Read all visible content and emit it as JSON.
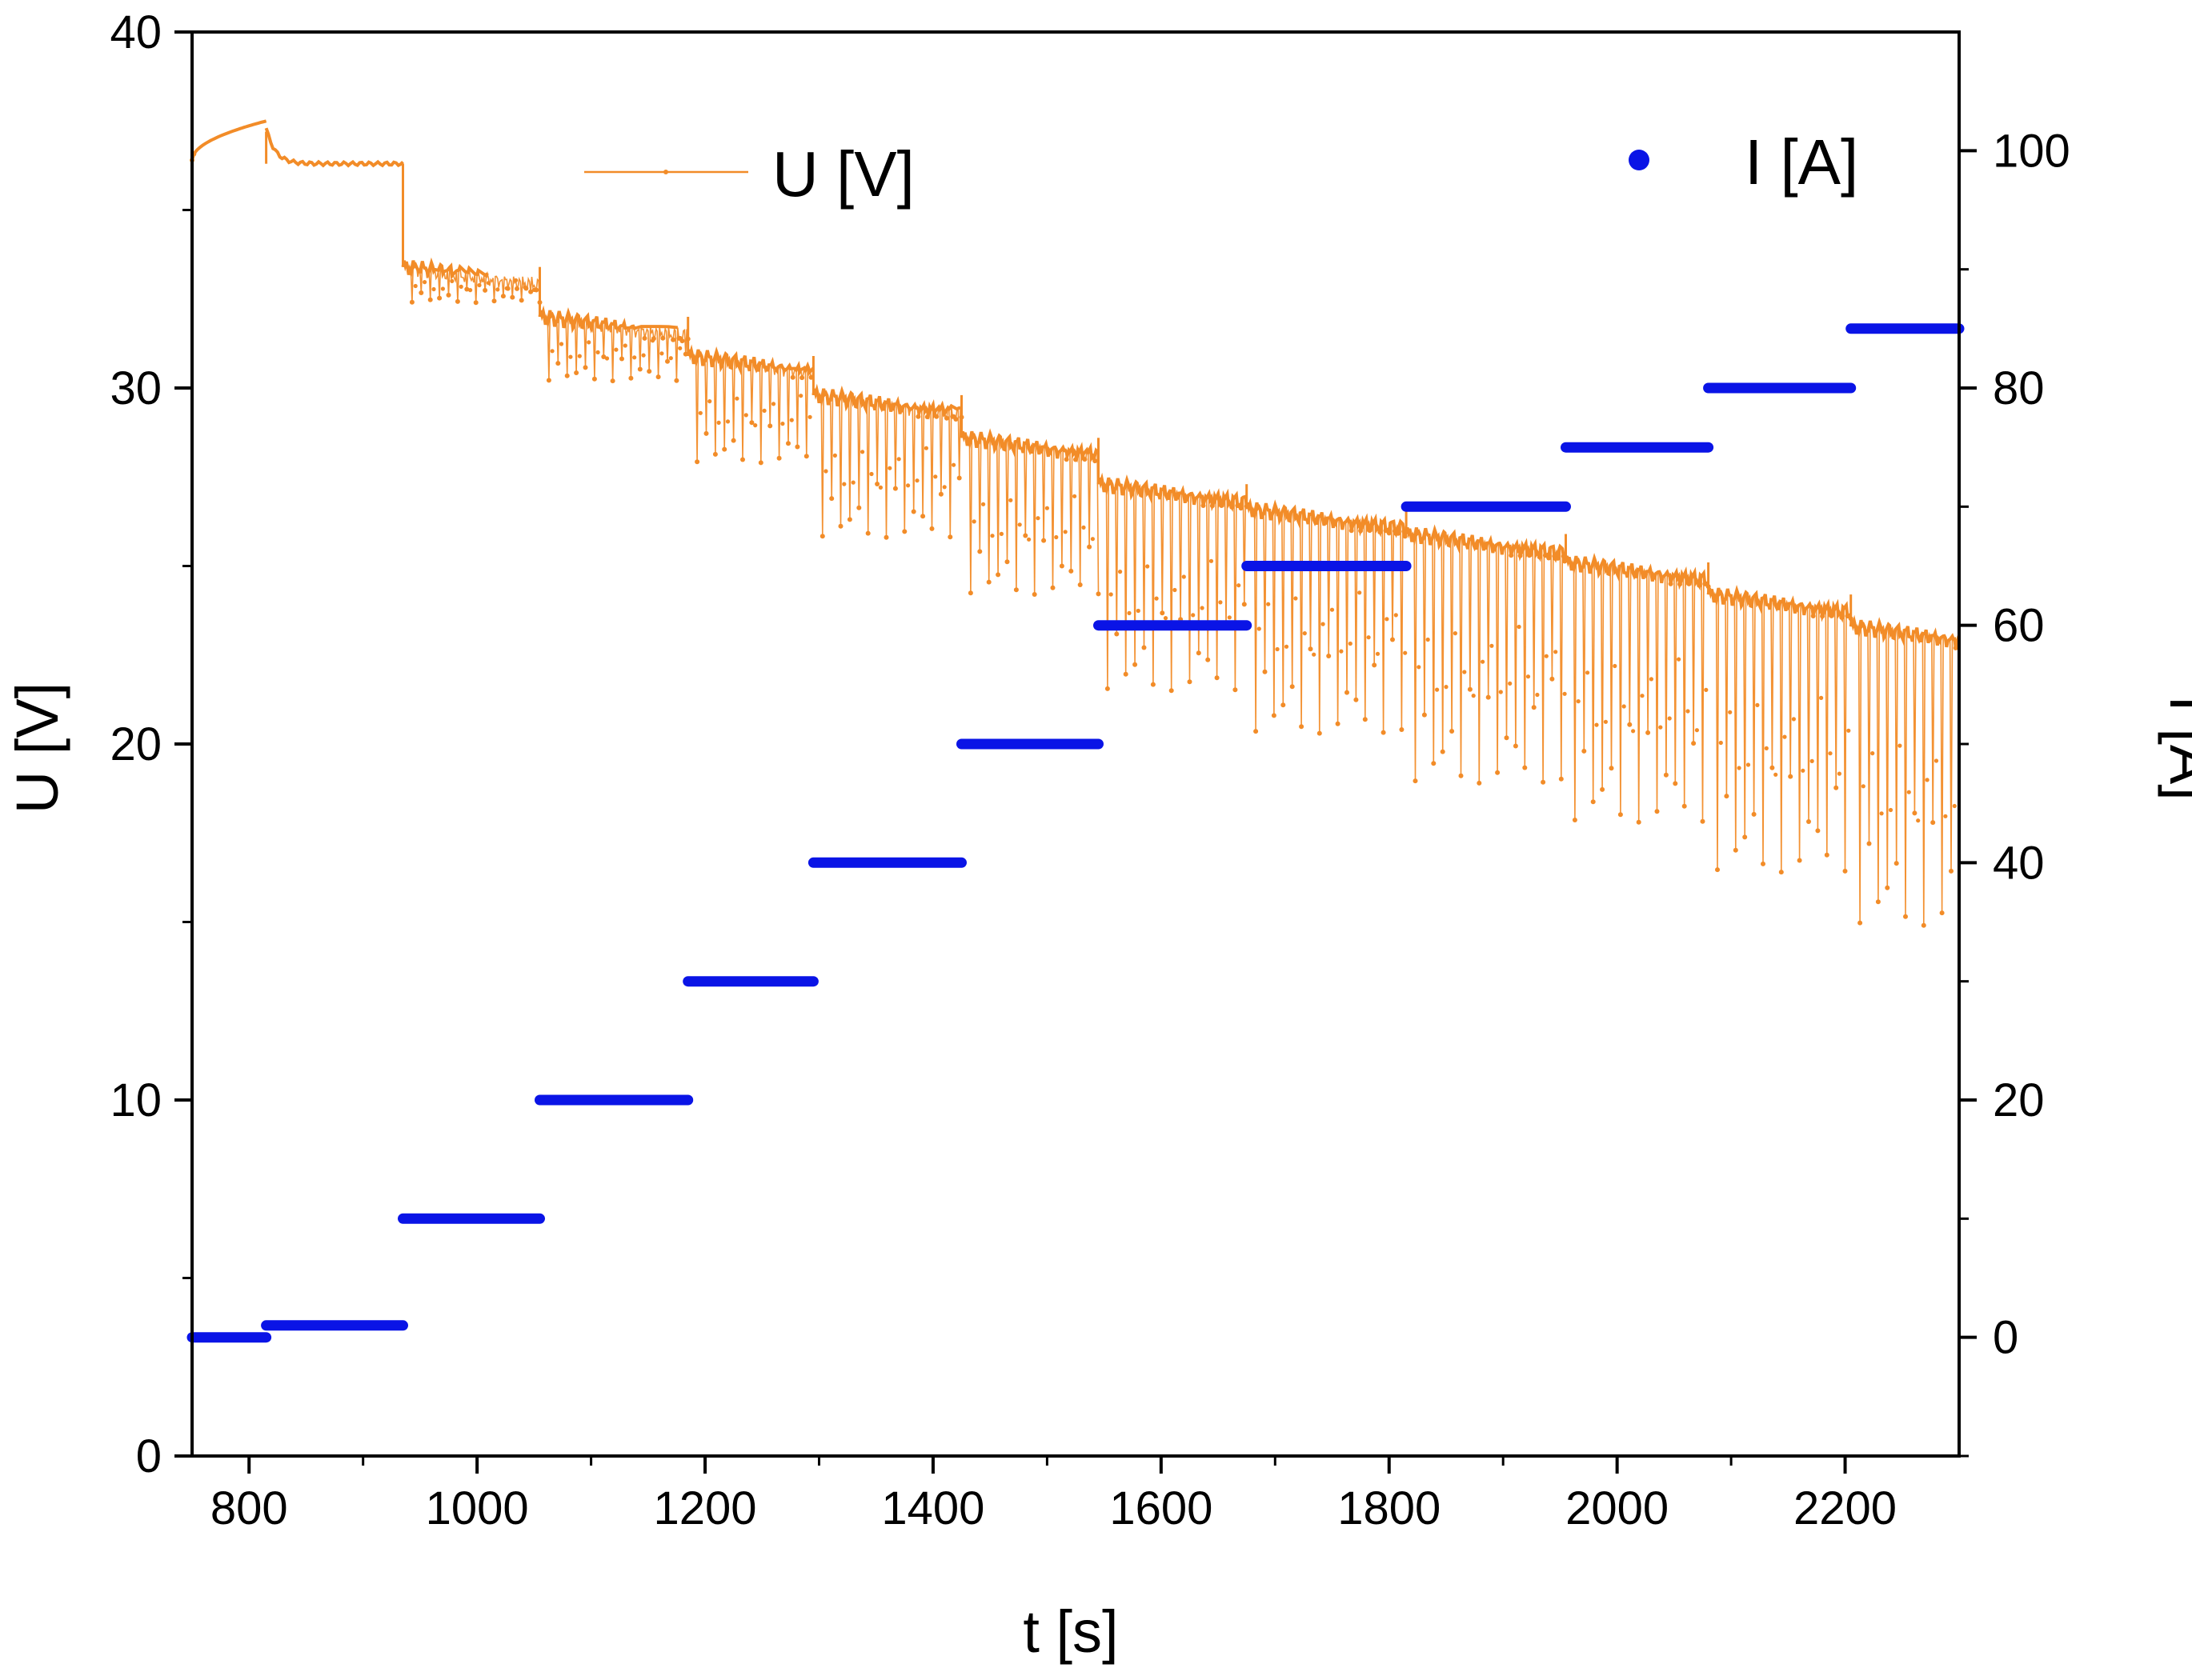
{
  "chart_data": {
    "type": "line",
    "xlabel": "t [s]",
    "xlim": [
      750,
      2300
    ],
    "xticks": [
      800,
      1000,
      1200,
      1400,
      1600,
      1800,
      2000,
      2200
    ],
    "y_left": {
      "label": "U [V]",
      "lim": [
        0,
        40
      ],
      "ticks": [
        0,
        10,
        20,
        30,
        40
      ]
    },
    "y_right": {
      "label": "I [A]",
      "lim": [
        -10,
        110
      ],
      "ticks": [
        0,
        20,
        40,
        60,
        80,
        100
      ]
    },
    "colors": {
      "voltage": "#f28c28",
      "current": "#0a14e6",
      "axis": "#000000"
    },
    "legend": [
      {
        "name": "U [V]",
        "marker": "line",
        "position": "top-center"
      },
      {
        "name": "I [A]",
        "marker": "dot",
        "position": "top-right"
      }
    ],
    "series": [
      {
        "name": "U [V]",
        "axis": "left",
        "style": "thin line with small dots, periodic voltage drops",
        "segments": [
          {
            "t_start": 750,
            "t_end": 815,
            "plateau": 37.2,
            "dip_min": 36.4
          },
          {
            "t_start": 815,
            "t_end": 935,
            "plateau": 36.3,
            "dip_min": 36.1
          },
          {
            "t_start": 935,
            "t_end": 1055,
            "plateau": 33.4,
            "dip_min": 32.4
          },
          {
            "t_start": 1055,
            "t_end": 1185,
            "plateau": 32.0,
            "dip_min": 30.2
          },
          {
            "t_start": 1185,
            "t_end": 1295,
            "plateau": 30.9,
            "dip_min": 27.9
          },
          {
            "t_start": 1295,
            "t_end": 1425,
            "plateau": 29.8,
            "dip_min": 25.8
          },
          {
            "t_start": 1425,
            "t_end": 1545,
            "plateau": 28.6,
            "dip_min": 24.2
          },
          {
            "t_start": 1545,
            "t_end": 1675,
            "plateau": 27.3,
            "dip_min": 21.5
          },
          {
            "t_start": 1675,
            "t_end": 1815,
            "plateau": 26.6,
            "dip_min": 20.3
          },
          {
            "t_start": 1815,
            "t_end": 1955,
            "plateau": 25.9,
            "dip_min": 18.9
          },
          {
            "t_start": 1955,
            "t_end": 2080,
            "plateau": 25.1,
            "dip_min": 17.8
          },
          {
            "t_start": 2080,
            "t_end": 2205,
            "plateau": 24.2,
            "dip_min": 16.4
          },
          {
            "t_start": 2205,
            "t_end": 2300,
            "plateau": 23.3,
            "dip_min": 14.9
          }
        ]
      },
      {
        "name": "I [A]",
        "axis": "right",
        "style": "dense blue dots forming horizontal steps",
        "steps": [
          {
            "t_start": 750,
            "t_end": 815,
            "value": 0
          },
          {
            "t_start": 815,
            "t_end": 935,
            "value": 1
          },
          {
            "t_start": 935,
            "t_end": 1055,
            "value": 10
          },
          {
            "t_start": 1055,
            "t_end": 1185,
            "value": 20
          },
          {
            "t_start": 1185,
            "t_end": 1295,
            "value": 30
          },
          {
            "t_start": 1295,
            "t_end": 1425,
            "value": 40
          },
          {
            "t_start": 1425,
            "t_end": 1545,
            "value": 50
          },
          {
            "t_start": 1545,
            "t_end": 1675,
            "value": 60
          },
          {
            "t_start": 1675,
            "t_end": 1815,
            "value": 65
          },
          {
            "t_start": 1815,
            "t_end": 1955,
            "value": 70
          },
          {
            "t_start": 1955,
            "t_end": 2080,
            "value": 75
          },
          {
            "t_start": 2080,
            "t_end": 2205,
            "value": 80
          },
          {
            "t_start": 2205,
            "t_end": 2300,
            "value": 85
          }
        ]
      }
    ]
  }
}
